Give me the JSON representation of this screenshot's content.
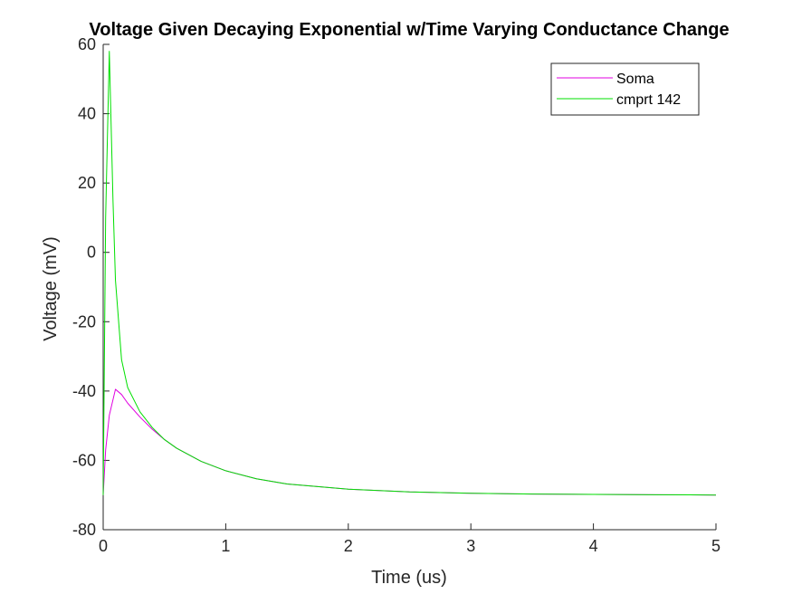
{
  "chart_data": {
    "type": "line",
    "title": "Voltage Given Decaying Exponential w/Time Varying Conductance Change",
    "xlabel": "Time (us)",
    "ylabel": "Voltage (mV)",
    "xlim": [
      0,
      5
    ],
    "ylim": [
      -80,
      60
    ],
    "xticks": [
      0,
      1,
      2,
      3,
      4,
      5
    ],
    "yticks": [
      -80,
      -60,
      -40,
      -20,
      0,
      20,
      40,
      60
    ],
    "xtick_labels": [
      "0",
      "1",
      "2",
      "3",
      "4",
      "5"
    ],
    "ytick_labels": [
      "-80",
      "-60",
      "-40",
      "-20",
      "0",
      "20",
      "40",
      "60"
    ],
    "grid": false,
    "legend_position": "top-right",
    "series": [
      {
        "name": "Soma",
        "color": "#e000e0",
        "x": [
          0,
          0.02,
          0.05,
          0.1,
          0.15,
          0.2,
          0.3,
          0.4,
          0.5,
          0.6,
          0.8,
          1.0,
          1.25,
          1.5,
          2.0,
          2.5,
          3.0,
          3.5,
          4.0,
          4.5,
          5.0
        ],
        "y": [
          -70,
          -57,
          -47,
          -39.5,
          -41,
          -43.5,
          -47.5,
          -51,
          -54,
          -56.5,
          -60.3,
          -63,
          -65.3,
          -66.8,
          -68.3,
          -69.1,
          -69.5,
          -69.7,
          -69.8,
          -69.9,
          -70
        ]
      },
      {
        "name": "cmprt 142",
        "color": "#00e000",
        "x": [
          0,
          0.02,
          0.05,
          0.08,
          0.1,
          0.15,
          0.2,
          0.3,
          0.4,
          0.5,
          0.6,
          0.8,
          1.0,
          1.25,
          1.5,
          2.0,
          2.5,
          3.0,
          3.5,
          4.0,
          4.5,
          5.0
        ],
        "y": [
          -70,
          10,
          58,
          15,
          -8,
          -31,
          -39,
          -46,
          -50.5,
          -54,
          -56.5,
          -60.3,
          -63,
          -65.3,
          -66.8,
          -68.3,
          -69.1,
          -69.5,
          -69.7,
          -69.8,
          -69.9,
          -70
        ]
      }
    ]
  }
}
